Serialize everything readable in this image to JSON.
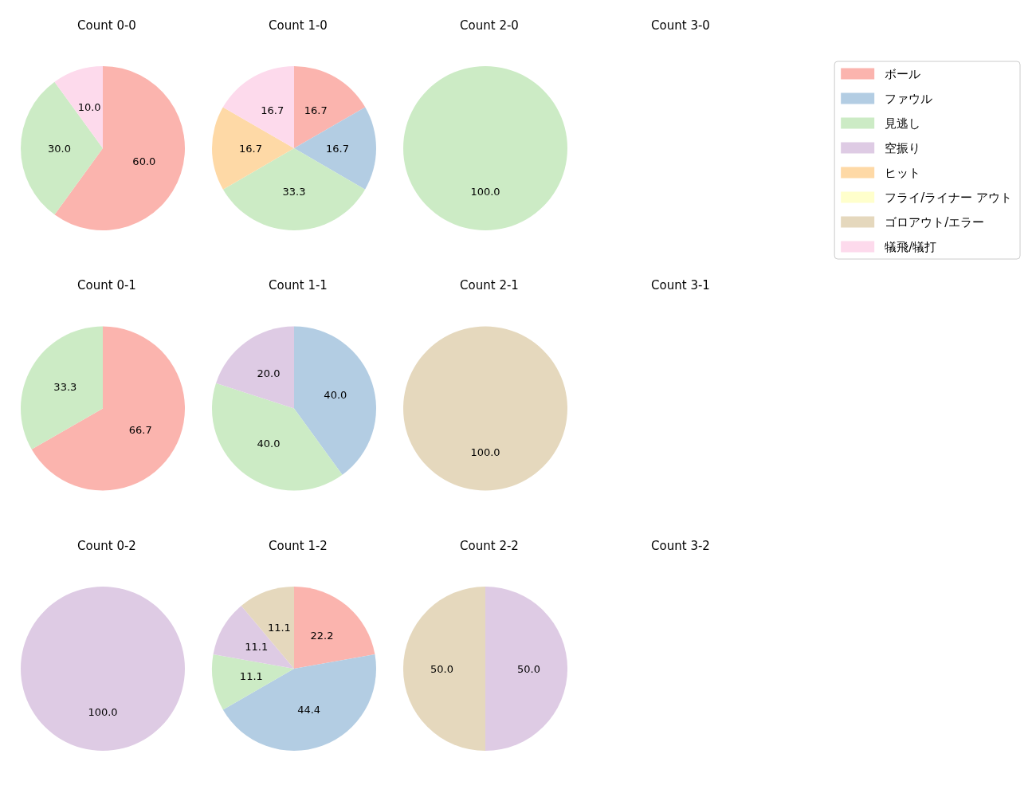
{
  "chart_data": [
    {
      "type": "pie",
      "title": "Count 0-0",
      "categories": [
        null,
        null,
        null
      ],
      "values": [
        60.0,
        30.0,
        10.0
      ],
      "value_labels": [
        "60.0",
        "30.0",
        "10.0"
      ],
      "colors": [
        "#fbb4ae",
        "#ccebc5",
        "#fddaec"
      ]
    },
    {
      "type": "pie",
      "title": "Count 1-0",
      "categories": [
        null,
        null,
        null,
        null,
        null
      ],
      "values": [
        16.7,
        16.7,
        33.3,
        16.7,
        16.7
      ],
      "value_labels": [
        "16.7",
        "16.7",
        "33.3",
        "16.7",
        "16.7"
      ],
      "colors": [
        "#fbb4ae",
        "#b3cde3",
        "#ccebc5",
        "#fed9a6",
        "#fddaec"
      ]
    },
    {
      "type": "pie",
      "title": "Count 2-0",
      "categories": [
        null
      ],
      "values": [
        100.0
      ],
      "value_labels": [
        "100.0"
      ],
      "colors": [
        "#ccebc5"
      ]
    },
    {
      "type": "other",
      "title": "Count 3-0",
      "categories": [
        "ボール",
        "ファウル",
        "見逃し",
        "空振り",
        "ヒット",
        "フライ/ライナー アウト",
        "ゴロアウト/エラー",
        "犠飛/犠打"
      ],
      "colors": [
        "#fbb4ae",
        "#b3cde3",
        "#ccebc5",
        "#decbe4",
        "#fed9a6",
        "#ffffcc",
        "#e5d8bd",
        "#fddaec"
      ]
    },
    {
      "type": "pie",
      "title": "Count 0-1",
      "categories": [
        null,
        null
      ],
      "values": [
        66.7,
        33.3
      ],
      "value_labels": [
        "66.7",
        "33.3"
      ],
      "colors": [
        "#fbb4ae",
        "#ccebc5"
      ]
    },
    {
      "type": "pie",
      "title": "Count 1-1",
      "categories": [
        null,
        null,
        null
      ],
      "values": [
        40.0,
        40.0,
        20.0
      ],
      "value_labels": [
        "40.0",
        "40.0",
        "20.0"
      ],
      "colors": [
        "#b3cde3",
        "#ccebc5",
        "#decbe4"
      ]
    },
    {
      "type": "pie",
      "title": "Count 2-1",
      "categories": [
        null
      ],
      "values": [
        100.0
      ],
      "value_labels": [
        "100.0"
      ],
      "colors": [
        "#e5d8bd"
      ]
    },
    {
      "type": "other",
      "title": "Count 3-1"
    },
    {
      "type": "pie",
      "title": "Count 0-2",
      "categories": [
        null
      ],
      "values": [
        100.0
      ],
      "value_labels": [
        "100.0"
      ],
      "colors": [
        "#decbe4"
      ]
    },
    {
      "type": "pie",
      "title": "Count 1-2",
      "categories": [
        null,
        null,
        null,
        null,
        null
      ],
      "values": [
        22.2,
        44.4,
        11.1,
        11.1,
        11.1
      ],
      "value_labels": [
        "22.2",
        "44.4",
        "11.1",
        "11.1",
        "11.1"
      ],
      "colors": [
        "#fbb4ae",
        "#b3cde3",
        "#ccebc5",
        "#decbe4",
        "#e5d8bd"
      ]
    },
    {
      "type": "pie",
      "title": "Count 2-2",
      "categories": [
        null,
        null
      ],
      "values": [
        50.0,
        50.0
      ],
      "value_labels": [
        "50.0",
        "50.0"
      ],
      "colors": [
        "#decbe4",
        "#e5d8bd"
      ]
    },
    {
      "type": "other",
      "title": "Count 3-2"
    }
  ]
}
